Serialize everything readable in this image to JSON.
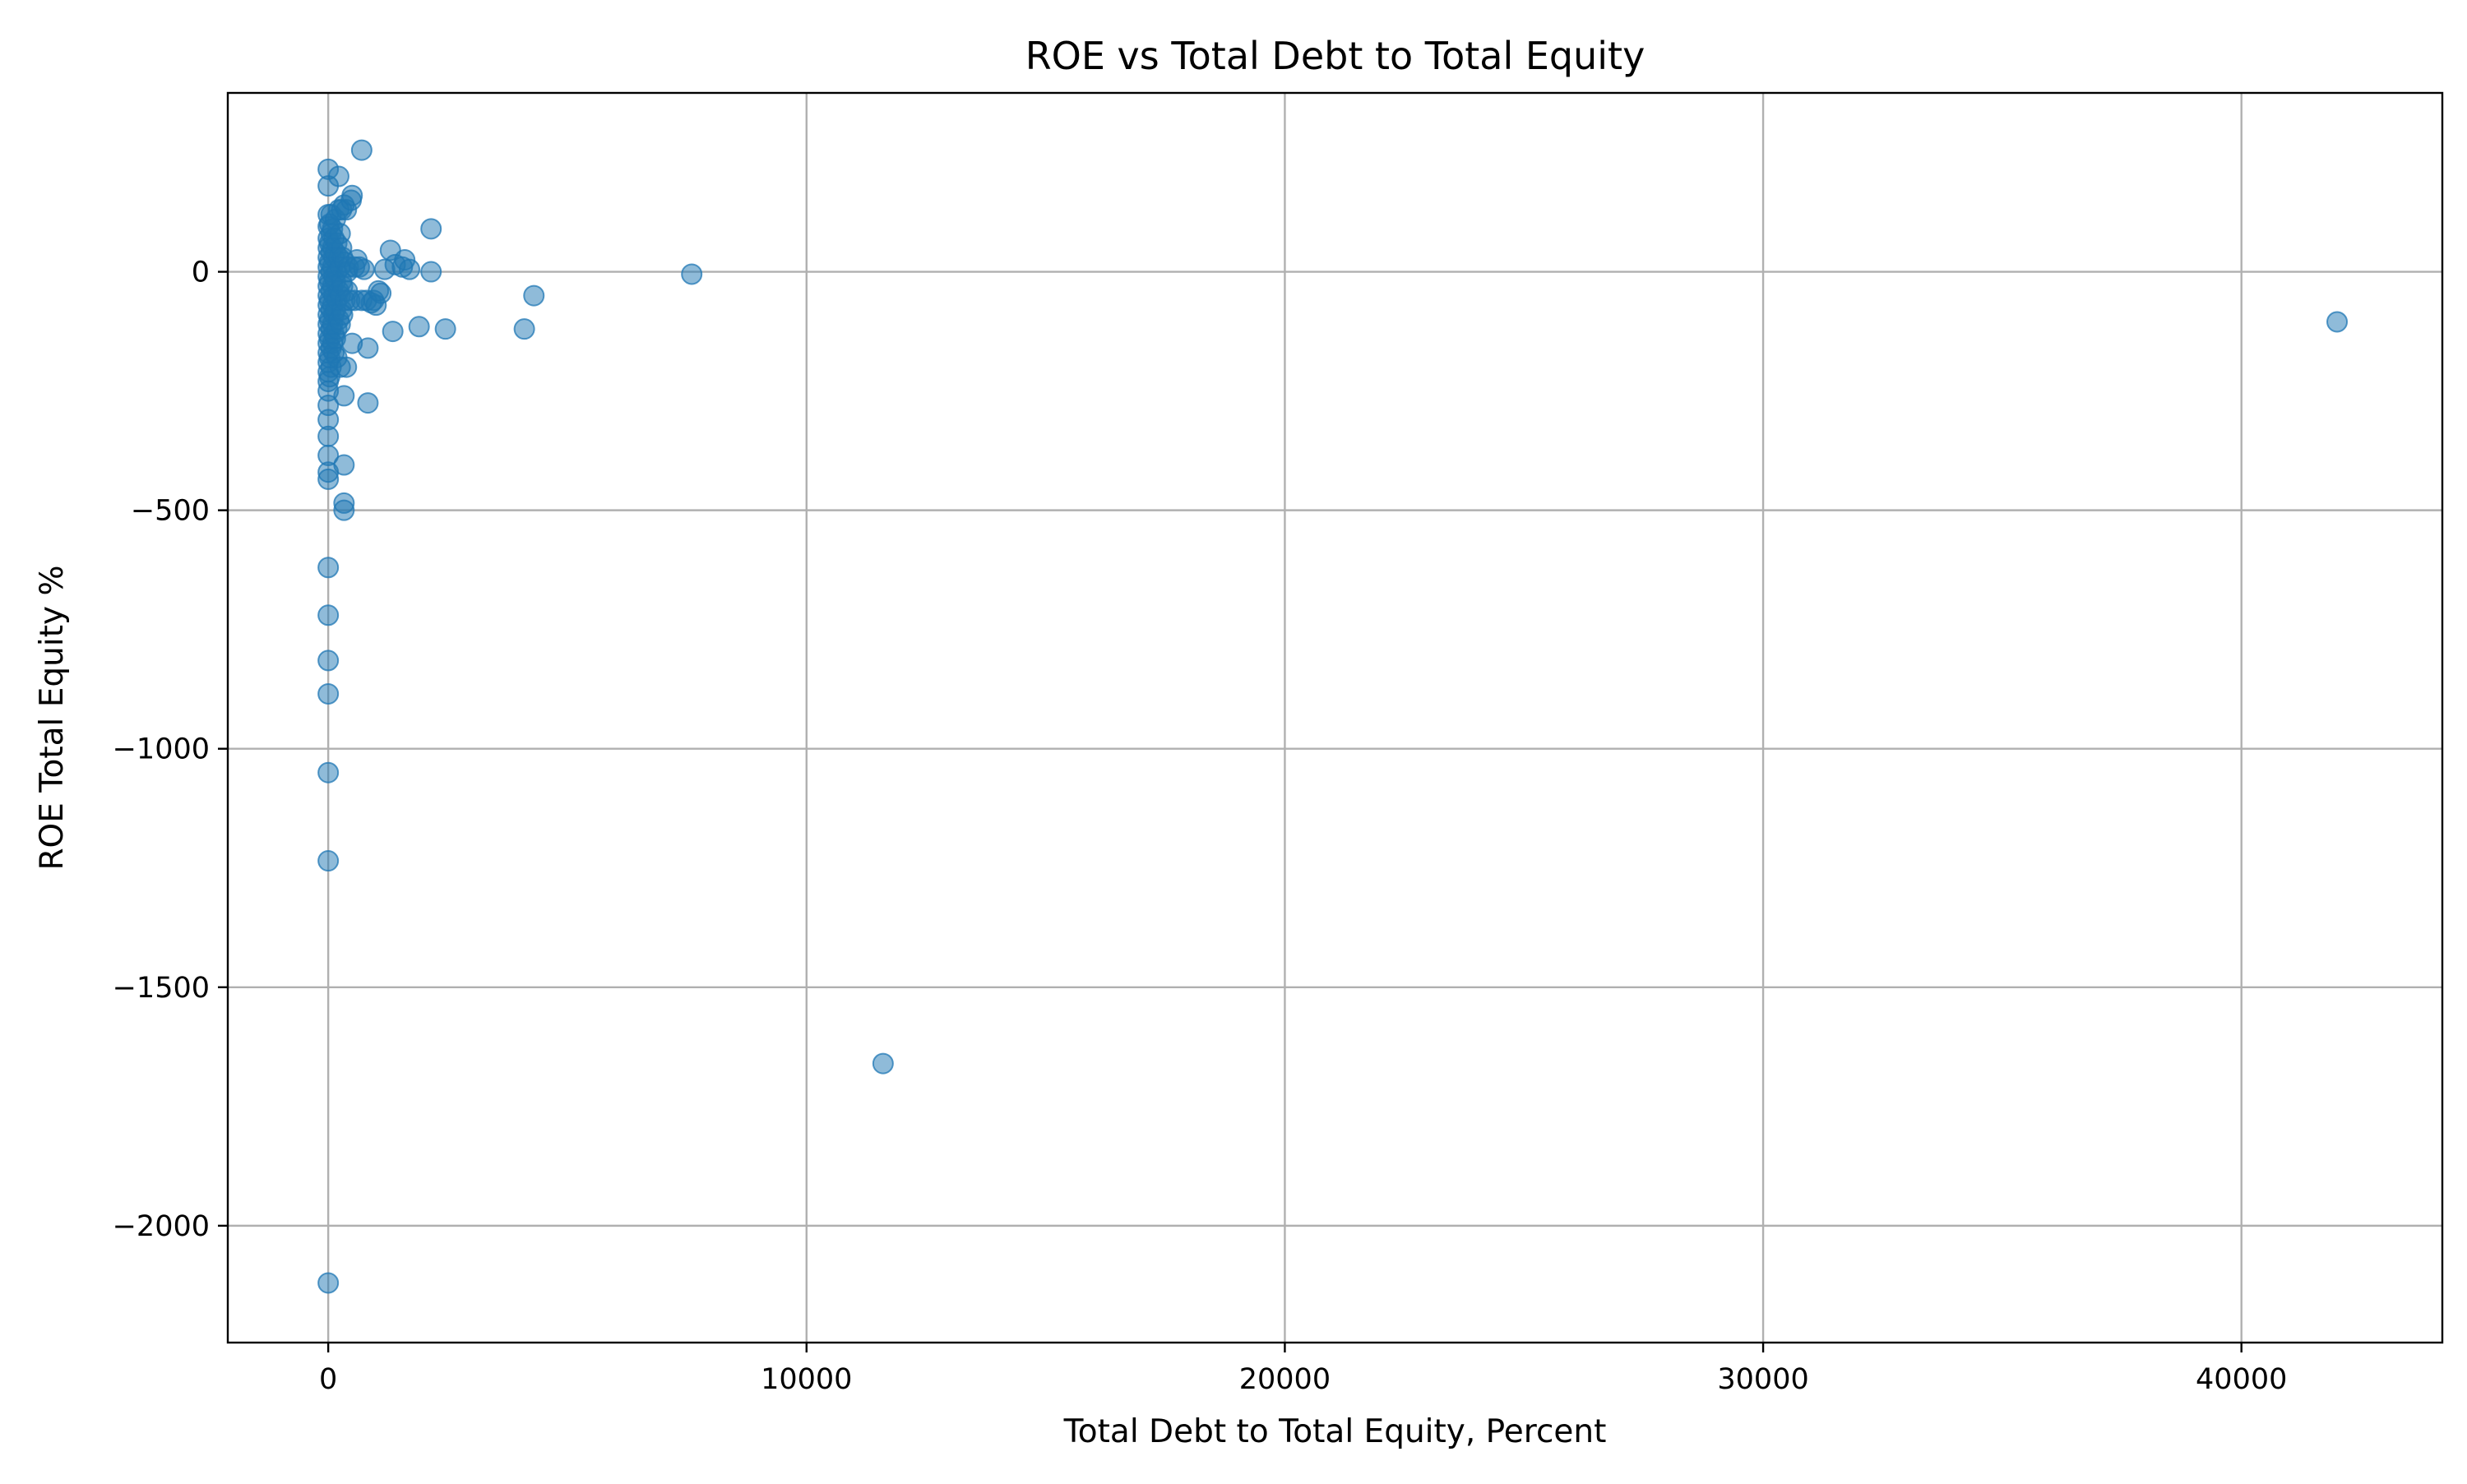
{
  "chart_data": {
    "type": "scatter",
    "title": "ROE vs Total Debt to Total Equity",
    "xlabel": "Total Debt to Total Equity, Percent",
    "ylabel": "ROE Total Equity %",
    "xlim": [
      -2100,
      44200
    ],
    "ylim": [
      -2245,
      375
    ],
    "xticks": [
      0,
      10000,
      20000,
      30000,
      40000
    ],
    "xtick_labels": [
      "0",
      "10000",
      "20000",
      "30000",
      "40000"
    ],
    "yticks": [
      -2000,
      -1500,
      -1000,
      -500,
      0
    ],
    "ytick_labels": [
      "−2000",
      "−1500",
      "−1000",
      "−500",
      "0"
    ],
    "grid": true,
    "marker_color": "#1f77b4",
    "marker_alpha": 0.5,
    "series": [
      {
        "points": [
          [
            0,
            215
          ],
          [
            0,
            180
          ],
          [
            0,
            120
          ],
          [
            0,
            95
          ],
          [
            0,
            70
          ],
          [
            0,
            50
          ],
          [
            0,
            30
          ],
          [
            0,
            10
          ],
          [
            0,
            -10
          ],
          [
            0,
            -30
          ],
          [
            0,
            -50
          ],
          [
            0,
            -70
          ],
          [
            0,
            -90
          ],
          [
            0,
            -110
          ],
          [
            0,
            -130
          ],
          [
            0,
            -150
          ],
          [
            0,
            -170
          ],
          [
            0,
            -190
          ],
          [
            0,
            -210
          ],
          [
            0,
            -230
          ],
          [
            0,
            -250
          ],
          [
            0,
            -280
          ],
          [
            0,
            -310
          ],
          [
            0,
            -345
          ],
          [
            0,
            -385
          ],
          [
            0,
            -420
          ],
          [
            0,
            -435
          ],
          [
            0,
            -620
          ],
          [
            0,
            -720
          ],
          [
            0,
            -815
          ],
          [
            0,
            -885
          ],
          [
            0,
            -1050
          ],
          [
            0,
            -1235
          ],
          [
            0,
            -2120
          ],
          [
            30,
            100
          ],
          [
            30,
            60
          ],
          [
            30,
            20
          ],
          [
            30,
            -20
          ],
          [
            30,
            -60
          ],
          [
            30,
            -100
          ],
          [
            30,
            -140
          ],
          [
            30,
            -180
          ],
          [
            30,
            -220
          ],
          [
            60,
            120
          ],
          [
            60,
            80
          ],
          [
            60,
            40
          ],
          [
            60,
            0
          ],
          [
            60,
            -40
          ],
          [
            60,
            -80
          ],
          [
            60,
            -120
          ],
          [
            60,
            -160
          ],
          [
            60,
            -200
          ],
          [
            90,
            90
          ],
          [
            90,
            50
          ],
          [
            90,
            10
          ],
          [
            90,
            -30
          ],
          [
            90,
            -70
          ],
          [
            90,
            -110
          ],
          [
            90,
            -150
          ],
          [
            120,
            70
          ],
          [
            120,
            30
          ],
          [
            120,
            -10
          ],
          [
            120,
            -50
          ],
          [
            120,
            -90
          ],
          [
            120,
            -130
          ],
          [
            120,
            -170
          ],
          [
            150,
            110
          ],
          [
            150,
            40
          ],
          [
            150,
            -20
          ],
          [
            150,
            -80
          ],
          [
            150,
            -140
          ],
          [
            180,
            60
          ],
          [
            180,
            0
          ],
          [
            180,
            -60
          ],
          [
            180,
            -120
          ],
          [
            180,
            -180
          ],
          [
            220,
            200
          ],
          [
            220,
            130
          ],
          [
            220,
            30
          ],
          [
            220,
            -40
          ],
          [
            220,
            -100
          ],
          [
            250,
            80
          ],
          [
            250,
            10
          ],
          [
            250,
            -50
          ],
          [
            250,
            -110
          ],
          [
            250,
            -200
          ],
          [
            280,
            130
          ],
          [
            280,
            50
          ],
          [
            280,
            -20
          ],
          [
            280,
            -80
          ],
          [
            300,
            30
          ],
          [
            300,
            -30
          ],
          [
            300,
            -90
          ],
          [
            330,
            140
          ],
          [
            330,
            -260
          ],
          [
            330,
            -405
          ],
          [
            330,
            -485
          ],
          [
            330,
            -500
          ],
          [
            350,
            20
          ],
          [
            350,
            -60
          ],
          [
            380,
            130
          ],
          [
            380,
            -200
          ],
          [
            400,
            0
          ],
          [
            400,
            -40
          ],
          [
            420,
            10
          ],
          [
            450,
            -60
          ],
          [
            480,
            150
          ],
          [
            500,
            160
          ],
          [
            500,
            -150
          ],
          [
            550,
            10
          ],
          [
            550,
            -60
          ],
          [
            600,
            25
          ],
          [
            650,
            10
          ],
          [
            700,
            255
          ],
          [
            700,
            -60
          ],
          [
            750,
            5
          ],
          [
            800,
            -60
          ],
          [
            830,
            -160
          ],
          [
            830,
            -275
          ],
          [
            900,
            -65
          ],
          [
            950,
            -60
          ],
          [
            1000,
            -70
          ],
          [
            1050,
            -40
          ],
          [
            1100,
            -45
          ],
          [
            1180,
            5
          ],
          [
            1300,
            45
          ],
          [
            1350,
            -125
          ],
          [
            1400,
            15
          ],
          [
            1550,
            10
          ],
          [
            1600,
            25
          ],
          [
            1700,
            5
          ],
          [
            1900,
            -115
          ],
          [
            2150,
            90
          ],
          [
            2150,
            0
          ],
          [
            2450,
            -120
          ],
          [
            4100,
            -120
          ],
          [
            4300,
            -50
          ],
          [
            7600,
            -5
          ],
          [
            11600,
            -1660
          ],
          [
            42000,
            -105
          ]
        ]
      }
    ]
  }
}
